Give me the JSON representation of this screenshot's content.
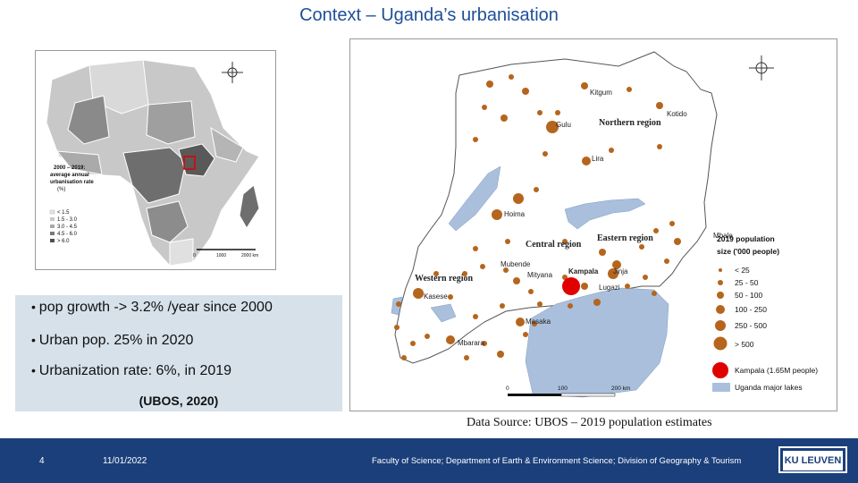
{
  "title": "Context – Uganda’s urbanisation",
  "africa_map": {
    "legend_title": "2000 - 2019: average annual urbanisation rate (%)",
    "legend_title_line1": "2000 – 2019:",
    "legend_title_line2": "average annual",
    "legend_title_line3": "urbanisation rate",
    "legend_title_line4": "(%)",
    "legend_items": [
      "< 1.5",
      "1.5 - 3.0",
      "3.0 - 4.5",
      "4.5 - 6.0",
      "> 6.0"
    ],
    "scale": [
      "0",
      "1000",
      "2000 km"
    ]
  },
  "bullets": [
    "pop growth -> 3.2% /year since 2000",
    "Urban pop. 25% in 2020",
    "Urbanization rate: 6%, in 2019"
  ],
  "citation": "(UBOS, 2020)",
  "uganda_map": {
    "towns": [
      "Kitgum",
      "Kotido",
      "Gulu",
      "Lira",
      "Hoima",
      "Mbale",
      "Mubende",
      "Mityana",
      "Kampala",
      "Jinja",
      "Lugazi",
      "Kasese",
      "Masaka",
      "Mbarara"
    ],
    "regions": [
      "Northern region",
      "Central region",
      "Eastern region",
      "Western region"
    ],
    "legend_title_line1": "2019 population",
    "legend_title_line2": "size ('000 people)",
    "legend_items": [
      "< 25",
      "25 - 50",
      "50 - 100",
      "100 - 250",
      "250 - 500",
      "> 500"
    ],
    "kampala_label": "Kampala (1.65M people)",
    "lakes_label": "Uganda major lakes",
    "scale": [
      "0",
      "100",
      "200 km"
    ]
  },
  "data_source": "Data Source: UBOS – 2019 population estimates",
  "footer": {
    "page_number": "4",
    "date": "11/01/2022",
    "faculty": "Faculty of Science; Department of Earth & Environment Science; Division of Geography & Tourism",
    "logo": "KU LEUVEN"
  },
  "colors": {
    "title": "#1f4e9a",
    "footer_bg": "#1b3f7a",
    "bubble": "#b5651d",
    "kampala": "#e00000",
    "lake": "#a9bfdc",
    "box_bg": "#d6e1ea"
  }
}
